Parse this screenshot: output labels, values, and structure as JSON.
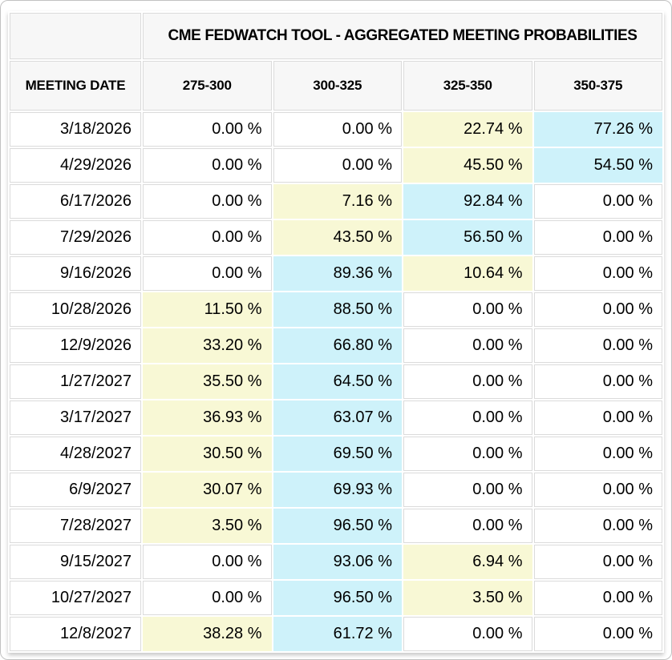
{
  "table": {
    "title": "CME FEDWATCH TOOL - AGGREGATED MEETING PROBABILITIES",
    "columns": [
      "MEETING DATE",
      "275-300",
      "300-325",
      "325-350",
      "350-375"
    ],
    "rows": [
      {
        "date": "3/18/2026",
        "values": [
          "0.00 %",
          "0.00 %",
          "22.74 %",
          "77.26 %"
        ],
        "highlights": [
          "none",
          "none",
          "yellow",
          "blue"
        ]
      },
      {
        "date": "4/29/2026",
        "values": [
          "0.00 %",
          "0.00 %",
          "45.50 %",
          "54.50 %"
        ],
        "highlights": [
          "none",
          "none",
          "yellow",
          "blue"
        ]
      },
      {
        "date": "6/17/2026",
        "values": [
          "0.00 %",
          "7.16 %",
          "92.84 %",
          "0.00 %"
        ],
        "highlights": [
          "none",
          "yellow",
          "blue",
          "none"
        ]
      },
      {
        "date": "7/29/2026",
        "values": [
          "0.00 %",
          "43.50 %",
          "56.50 %",
          "0.00 %"
        ],
        "highlights": [
          "none",
          "yellow",
          "blue",
          "none"
        ]
      },
      {
        "date": "9/16/2026",
        "values": [
          "0.00 %",
          "89.36 %",
          "10.64 %",
          "0.00 %"
        ],
        "highlights": [
          "none",
          "blue",
          "yellow",
          "none"
        ]
      },
      {
        "date": "10/28/2026",
        "values": [
          "11.50 %",
          "88.50 %",
          "0.00 %",
          "0.00 %"
        ],
        "highlights": [
          "yellow",
          "blue",
          "none",
          "none"
        ]
      },
      {
        "date": "12/9/2026",
        "values": [
          "33.20 %",
          "66.80 %",
          "0.00 %",
          "0.00 %"
        ],
        "highlights": [
          "yellow",
          "blue",
          "none",
          "none"
        ]
      },
      {
        "date": "1/27/2027",
        "values": [
          "35.50 %",
          "64.50 %",
          "0.00 %",
          "0.00 %"
        ],
        "highlights": [
          "yellow",
          "blue",
          "none",
          "none"
        ]
      },
      {
        "date": "3/17/2027",
        "values": [
          "36.93 %",
          "63.07 %",
          "0.00 %",
          "0.00 %"
        ],
        "highlights": [
          "yellow",
          "blue",
          "none",
          "none"
        ]
      },
      {
        "date": "4/28/2027",
        "values": [
          "30.50 %",
          "69.50 %",
          "0.00 %",
          "0.00 %"
        ],
        "highlights": [
          "yellow",
          "blue",
          "none",
          "none"
        ]
      },
      {
        "date": "6/9/2027",
        "values": [
          "30.07 %",
          "69.93 %",
          "0.00 %",
          "0.00 %"
        ],
        "highlights": [
          "yellow",
          "blue",
          "none",
          "none"
        ]
      },
      {
        "date": "7/28/2027",
        "values": [
          "3.50 %",
          "96.50 %",
          "0.00 %",
          "0.00 %"
        ],
        "highlights": [
          "yellow",
          "blue",
          "none",
          "none"
        ]
      },
      {
        "date": "9/15/2027",
        "values": [
          "0.00 %",
          "93.06 %",
          "6.94 %",
          "0.00 %"
        ],
        "highlights": [
          "none",
          "blue",
          "yellow",
          "none"
        ]
      },
      {
        "date": "10/27/2027",
        "values": [
          "0.00 %",
          "96.50 %",
          "3.50 %",
          "0.00 %"
        ],
        "highlights": [
          "none",
          "blue",
          "yellow",
          "none"
        ]
      },
      {
        "date": "12/8/2027",
        "values": [
          "38.28 %",
          "61.72 %",
          "0.00 %",
          "0.00 %"
        ],
        "highlights": [
          "yellow",
          "blue",
          "none",
          "none"
        ]
      }
    ],
    "colors": {
      "yellow": "#F8F8D5",
      "blue": "#CEF2FA",
      "header_bg": "#F7F7F7",
      "border": "#DBDBDB",
      "text": "#000000"
    }
  }
}
